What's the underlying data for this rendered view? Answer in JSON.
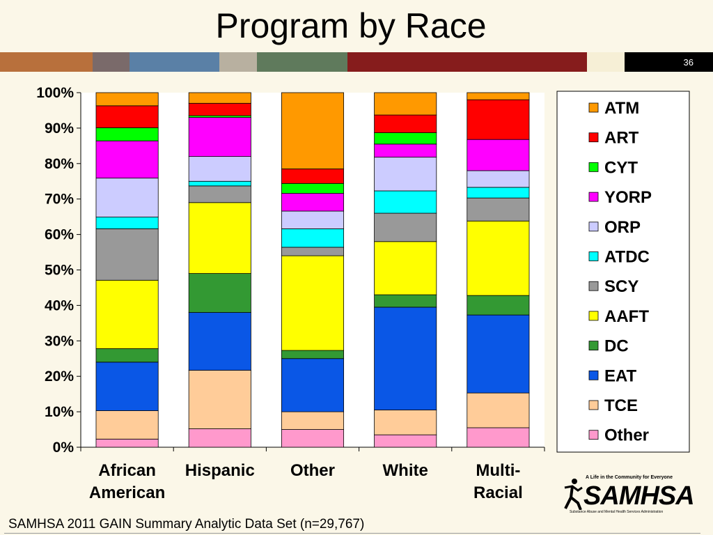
{
  "slide": {
    "title": "Program by Race",
    "slide_number": "36",
    "source_note": "SAMHSA 2011 GAIN Summary Analytic Data Set (n=29,767)",
    "band_colors": [
      "#b8703c",
      "#7a6a6a",
      "#5a80a6",
      "#b8b0a0",
      "#5f7a5c",
      "#861c1c",
      "#f6efd6"
    ]
  },
  "logo": {
    "tagline": "A Life in the Community for Everyone",
    "name": "SAMHSA",
    "subtitle": "Substance Abuse and Mental Health Services Administration"
  },
  "chart_data": {
    "type": "bar",
    "stacked": true,
    "percent": true,
    "categories": [
      "African American",
      "Hispanic",
      "Other",
      "White",
      "Multi-Racial"
    ],
    "y_ticks": [
      "0%",
      "10%",
      "20%",
      "30%",
      "40%",
      "50%",
      "60%",
      "70%",
      "80%",
      "90%",
      "100%"
    ],
    "ylim": [
      0,
      100
    ],
    "legend_position": "right",
    "series": [
      {
        "name": "Other",
        "color": "#ff99cc",
        "values": [
          2.3,
          5.2,
          5.0,
          3.5,
          5.5
        ]
      },
      {
        "name": "TCE",
        "color": "#ffcc99",
        "values": [
          8.0,
          16.5,
          5.0,
          7.0,
          9.8
        ]
      },
      {
        "name": "EAT",
        "color": "#0a57e6",
        "values": [
          13.7,
          16.3,
          15.0,
          29.0,
          22.0
        ]
      },
      {
        "name": "DC",
        "color": "#339933",
        "values": [
          3.8,
          11.0,
          2.3,
          3.5,
          5.5
        ]
      },
      {
        "name": "AAFT",
        "color": "#ffff00",
        "values": [
          19.3,
          20.0,
          26.7,
          15.0,
          21.0
        ]
      },
      {
        "name": "SCY",
        "color": "#999999",
        "values": [
          14.5,
          4.7,
          2.4,
          8.0,
          6.5
        ]
      },
      {
        "name": "ATDC",
        "color": "#00ffff",
        "values": [
          3.3,
          1.3,
          5.2,
          6.3,
          3.0
        ]
      },
      {
        "name": "ORP",
        "color": "#ccccff",
        "values": [
          11.0,
          7.0,
          5.0,
          9.5,
          4.7
        ]
      },
      {
        "name": "YORP",
        "color": "#ff00ff",
        "values": [
          10.5,
          11.0,
          5.0,
          3.7,
          8.8
        ]
      },
      {
        "name": "CYT",
        "color": "#00ff00",
        "values": [
          3.7,
          0.5,
          2.8,
          3.2,
          0.0
        ]
      },
      {
        "name": "ART",
        "color": "#ff0000",
        "values": [
          6.2,
          3.5,
          4.1,
          5.0,
          11.2
        ]
      },
      {
        "name": "ATM",
        "color": "#ff9900",
        "values": [
          3.7,
          3.0,
          21.5,
          6.3,
          2.0
        ]
      }
    ]
  }
}
